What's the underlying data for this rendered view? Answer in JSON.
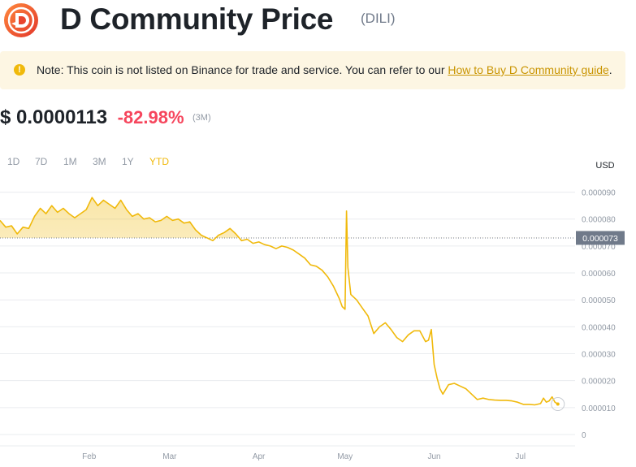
{
  "header": {
    "title": "D Community Price",
    "symbol": "(DILI)",
    "logo_icon": "d-community-logo-icon"
  },
  "note": {
    "icon": "exclamation-icon",
    "text": "Note: This coin is not listed on Binance for trade and service. You can refer to our ",
    "link_text": "How to Buy D Community guide",
    "suffix": "."
  },
  "price": {
    "value": "$ 0.0000113",
    "change": "-82.98%",
    "period": "(3M)"
  },
  "tabs": [
    {
      "label": "1D",
      "active": false
    },
    {
      "label": "7D",
      "active": false
    },
    {
      "label": "1M",
      "active": false
    },
    {
      "label": "3M",
      "active": false
    },
    {
      "label": "1Y",
      "active": false
    },
    {
      "label": "YTD",
      "active": true
    }
  ],
  "colors": {
    "accent": "#f0b90b",
    "negative": "#f6465d",
    "note_bg": "#fdf6e3",
    "current_label_bg": "#707a8a"
  },
  "chart_data": {
    "type": "area",
    "unit_label": "USD",
    "x_range": [
      0,
      200
    ],
    "x_ticks": [
      {
        "label": "Feb",
        "x": 31
      },
      {
        "label": "Mar",
        "x": 59
      },
      {
        "label": "Apr",
        "x": 90
      },
      {
        "label": "May",
        "x": 120
      },
      {
        "label": "Jun",
        "x": 151
      },
      {
        "label": "Jul",
        "x": 181
      }
    ],
    "ylim": [
      0,
      9.5e-05
    ],
    "y_ticks": [
      {
        "label": "0",
        "value": 0
      },
      {
        "label": "0.000010",
        "value": 1e-05
      },
      {
        "label": "0.000020",
        "value": 2e-05
      },
      {
        "label": "0.000030",
        "value": 3e-05
      },
      {
        "label": "0.000040",
        "value": 4e-05
      },
      {
        "label": "0.000050",
        "value": 5e-05
      },
      {
        "label": "0.000060",
        "value": 6e-05
      },
      {
        "label": "0.000070",
        "value": 7e-05
      },
      {
        "label": "0.000080",
        "value": 8e-05
      },
      {
        "label": "0.000090",
        "value": 9e-05
      }
    ],
    "reference_value": 7.3e-05,
    "reference_label": "0.000073",
    "grid": true,
    "series": [
      {
        "values": [
          [
            0,
            7.95e-05
          ],
          [
            2,
            7.7e-05
          ],
          [
            4,
            7.75e-05
          ],
          [
            6,
            7.45e-05
          ],
          [
            8,
            7.7e-05
          ],
          [
            10,
            7.65e-05
          ],
          [
            12,
            8.1e-05
          ],
          [
            14,
            8.4e-05
          ],
          [
            16,
            8.2e-05
          ],
          [
            18,
            8.5e-05
          ],
          [
            20,
            8.25e-05
          ],
          [
            22,
            8.4e-05
          ],
          [
            24,
            8.2e-05
          ],
          [
            26,
            8.05e-05
          ],
          [
            28,
            8.2e-05
          ],
          [
            30,
            8.35e-05
          ],
          [
            32,
            8.8e-05
          ],
          [
            34,
            8.5e-05
          ],
          [
            36,
            8.7e-05
          ],
          [
            38,
            8.55e-05
          ],
          [
            40,
            8.4e-05
          ],
          [
            42,
            8.7e-05
          ],
          [
            44,
            8.35e-05
          ],
          [
            46,
            8.1e-05
          ],
          [
            48,
            8.2e-05
          ],
          [
            50,
            8e-05
          ],
          [
            52,
            8.05e-05
          ],
          [
            54,
            7.9e-05
          ],
          [
            56,
            7.95e-05
          ],
          [
            58,
            8.1e-05
          ],
          [
            60,
            7.95e-05
          ],
          [
            62,
            8e-05
          ],
          [
            64,
            7.85e-05
          ],
          [
            66,
            7.9e-05
          ],
          [
            68,
            7.6e-05
          ],
          [
            70,
            7.4e-05
          ],
          [
            72,
            7.3e-05
          ],
          [
            74,
            7.2e-05
          ],
          [
            76,
            7.4e-05
          ],
          [
            78,
            7.5e-05
          ],
          [
            80,
            7.65e-05
          ],
          [
            82,
            7.45e-05
          ],
          [
            84,
            7.2e-05
          ],
          [
            86,
            7.25e-05
          ],
          [
            88,
            7.1e-05
          ],
          [
            90,
            7.15e-05
          ],
          [
            92,
            7.05e-05
          ],
          [
            94,
            7e-05
          ],
          [
            96,
            6.9e-05
          ],
          [
            98,
            7e-05
          ],
          [
            100,
            6.95e-05
          ],
          [
            102,
            6.85e-05
          ],
          [
            104,
            6.7e-05
          ],
          [
            106,
            6.55e-05
          ],
          [
            108,
            6.3e-05
          ],
          [
            110,
            6.25e-05
          ],
          [
            112,
            6.1e-05
          ],
          [
            114,
            5.85e-05
          ],
          [
            116,
            5.5e-05
          ],
          [
            118,
            5.05e-05
          ],
          [
            119,
            4.75e-05
          ],
          [
            120,
            4.65e-05
          ],
          [
            120.5,
            8.3e-05
          ],
          [
            121,
            6.2e-05
          ],
          [
            122,
            5.2e-05
          ],
          [
            124,
            5e-05
          ],
          [
            126,
            4.7e-05
          ],
          [
            128,
            4.4e-05
          ],
          [
            130,
            3.75e-05
          ],
          [
            132,
            4e-05
          ],
          [
            134,
            4.15e-05
          ],
          [
            136,
            3.9e-05
          ],
          [
            138,
            3.6e-05
          ],
          [
            140,
            3.45e-05
          ],
          [
            142,
            3.7e-05
          ],
          [
            144,
            3.85e-05
          ],
          [
            146,
            3.85e-05
          ],
          [
            148,
            3.45e-05
          ],
          [
            149,
            3.5e-05
          ],
          [
            150,
            3.9e-05
          ],
          [
            151,
            2.6e-05
          ],
          [
            152,
            2.1e-05
          ],
          [
            153,
            1.7e-05
          ],
          [
            154,
            1.5e-05
          ],
          [
            156,
            1.85e-05
          ],
          [
            158,
            1.9e-05
          ],
          [
            160,
            1.8e-05
          ],
          [
            162,
            1.7e-05
          ],
          [
            164,
            1.5e-05
          ],
          [
            166,
            1.3e-05
          ],
          [
            168,
            1.35e-05
          ],
          [
            170,
            1.3e-05
          ],
          [
            172,
            1.28e-05
          ],
          [
            174,
            1.27e-05
          ],
          [
            176,
            1.27e-05
          ],
          [
            178,
            1.25e-05
          ],
          [
            180,
            1.2e-05
          ],
          [
            182,
            1.12e-05
          ],
          [
            184,
            1.12e-05
          ],
          [
            186,
            1.1e-05
          ],
          [
            188,
            1.15e-05
          ],
          [
            189,
            1.35e-05
          ],
          [
            190,
            1.2e-05
          ],
          [
            191,
            1.25e-05
          ],
          [
            192,
            1.4e-05
          ],
          [
            193,
            1.2e-05
          ],
          [
            194,
            1.13e-05
          ]
        ]
      }
    ]
  }
}
